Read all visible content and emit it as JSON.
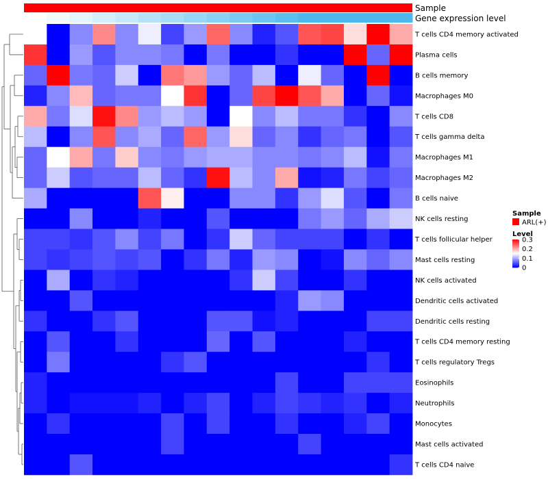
{
  "chart_data": {
    "type": "heatmap",
    "title": "",
    "annotation_tracks": [
      {
        "label": "Sample",
        "color": "#ff0000"
      },
      {
        "label": "Gene expression level",
        "colors": [
          "#ffffff",
          "#f2fafe",
          "#e3f4fc",
          "#d4eefb",
          "#c5e8fa",
          "#b6e2f9",
          "#a7dcf7",
          "#98d6f5",
          "#89d0f4",
          "#7acaf2",
          "#6bc4f1",
          "#5cbeef",
          "#4db8ee",
          "#4db8ee",
          "#4db8ee",
          "#4db8ee",
          "#4db8ee"
        ]
      }
    ],
    "rows": [
      "T cells CD4 memory activated",
      "Plasma cells",
      "B cells memory",
      "Macrophages M0",
      "T cells CD8",
      "T cells gamma delta",
      "Macrophages M1",
      "Macrophages M2",
      "B cells naive",
      "NK cells resting",
      "T cells follicular helper",
      "Mast cells resting",
      "NK cells activated",
      "Dendritic cells activated",
      "Dendritic cells resting",
      "T cells CD4 memory resting",
      "T cells regulatory  Tregs",
      "Eosinophils",
      "Neutrophils",
      "Monocytes",
      "Mast cells activated",
      "T cells CD4 naive"
    ],
    "values": [
      [
        0.15,
        0.0,
        0.08,
        0.22,
        0.08,
        0.14,
        0.04,
        0.09,
        0.24,
        0.08,
        0.02,
        0.05,
        0.25,
        0.26,
        0.17,
        0.31,
        0.2
      ],
      [
        0.27,
        0.0,
        0.09,
        0.05,
        0.08,
        0.08,
        0.07,
        0.0,
        0.07,
        0.0,
        0.0,
        0.03,
        0.0,
        0.0,
        0.31,
        0.06,
        0.31
      ],
      [
        0.06,
        0.31,
        0.07,
        0.06,
        0.12,
        0.0,
        0.23,
        0.21,
        0.09,
        0.06,
        0.11,
        0.0,
        0.14,
        0.06,
        0.0,
        0.31,
        0.0
      ],
      [
        0.02,
        0.08,
        0.19,
        0.06,
        0.07,
        0.07,
        0.15,
        0.27,
        0.0,
        0.06,
        0.26,
        0.31,
        0.25,
        0.2,
        0.0,
        0.06,
        0.01
      ],
      [
        0.2,
        0.07,
        0.13,
        0.29,
        0.22,
        0.09,
        0.11,
        0.09,
        0.0,
        0.15,
        0.08,
        0.11,
        0.07,
        0.07,
        0.03,
        0.0,
        0.08
      ],
      [
        0.11,
        0.0,
        0.08,
        0.25,
        0.08,
        0.1,
        0.06,
        0.24,
        0.09,
        0.17,
        0.06,
        0.08,
        0.03,
        0.06,
        0.07,
        0.0,
        0.05
      ],
      [
        0.06,
        0.15,
        0.2,
        0.07,
        0.18,
        0.08,
        0.07,
        0.09,
        0.1,
        0.1,
        0.08,
        0.08,
        0.07,
        0.08,
        0.11,
        0.01,
        0.07
      ],
      [
        0.06,
        0.12,
        0.05,
        0.06,
        0.06,
        0.11,
        0.06,
        0.03,
        0.29,
        0.11,
        0.08,
        0.2,
        0.01,
        0.02,
        0.07,
        0.04,
        0.06
      ],
      [
        0.1,
        0.0,
        0.0,
        0.0,
        0.0,
        0.25,
        0.16,
        0.0,
        0.0,
        0.08,
        0.08,
        0.03,
        0.09,
        0.13,
        0.05,
        0.0,
        0.07
      ],
      [
        0.0,
        0.0,
        0.08,
        0.0,
        0.0,
        0.02,
        0.0,
        0.0,
        0.05,
        0.0,
        0.0,
        0.0,
        0.07,
        0.09,
        0.06,
        0.1,
        0.12
      ],
      [
        0.04,
        0.04,
        0.03,
        0.05,
        0.08,
        0.04,
        0.07,
        0.0,
        0.03,
        0.12,
        0.06,
        0.04,
        0.04,
        0.04,
        0.0,
        0.03,
        0.0
      ],
      [
        0.04,
        0.03,
        0.04,
        0.05,
        0.04,
        0.05,
        0.0,
        0.03,
        0.07,
        0.02,
        0.09,
        0.08,
        0.0,
        0.01,
        0.08,
        0.06,
        0.08
      ],
      [
        0.0,
        0.1,
        0.0,
        0.03,
        0.02,
        0.0,
        0.0,
        0.0,
        0.0,
        0.03,
        0.12,
        0.04,
        0.0,
        0.0,
        0.03,
        0.0,
        0.0
      ],
      [
        0.0,
        0.0,
        0.05,
        0.0,
        0.0,
        0.0,
        0.0,
        0.0,
        0.0,
        0.0,
        0.0,
        0.02,
        0.09,
        0.08,
        0.0,
        0.0,
        0.0
      ],
      [
        0.03,
        0.0,
        0.0,
        0.03,
        0.05,
        0.0,
        0.0,
        0.0,
        0.05,
        0.05,
        0.01,
        0.02,
        0.0,
        0.0,
        0.0,
        0.04,
        0.04
      ],
      [
        0.0,
        0.05,
        0.0,
        0.0,
        0.03,
        0.0,
        0.0,
        0.0,
        0.06,
        0.0,
        0.05,
        0.0,
        0.0,
        0.0,
        0.02,
        0.0,
        0.0
      ],
      [
        0.0,
        0.07,
        0.0,
        0.0,
        0.0,
        0.0,
        0.03,
        0.05,
        0.0,
        0.0,
        0.0,
        0.0,
        0.0,
        0.0,
        0.0,
        0.03,
        0.0
      ],
      [
        0.02,
        0.0,
        0.0,
        0.0,
        0.0,
        0.0,
        0.0,
        0.0,
        0.0,
        0.0,
        0.0,
        0.04,
        0.0,
        0.0,
        0.04,
        0.04,
        0.04
      ],
      [
        0.02,
        0.0,
        0.01,
        0.01,
        0.01,
        0.02,
        0.0,
        0.02,
        0.04,
        0.0,
        0.02,
        0.04,
        0.03,
        0.02,
        0.03,
        0.0,
        0.02
      ],
      [
        0.0,
        0.03,
        0.0,
        0.0,
        0.0,
        0.0,
        0.04,
        0.0,
        0.04,
        0.0,
        0.0,
        0.03,
        0.0,
        0.0,
        0.02,
        0.04,
        0.0
      ],
      [
        0.0,
        0.0,
        0.0,
        0.0,
        0.0,
        0.0,
        0.04,
        0.0,
        0.0,
        0.0,
        0.0,
        0.0,
        0.04,
        0.0,
        0.0,
        0.0,
        0.0
      ],
      [
        0.0,
        0.0,
        0.05,
        0.0,
        0.0,
        0.0,
        0.0,
        0.0,
        0.0,
        0.0,
        0.0,
        0.0,
        0.0,
        0.0,
        0.0,
        0.0,
        0.03
      ]
    ],
    "color_scale": {
      "min": 0,
      "max": 0.3,
      "low": "#0000ff",
      "mid": "#ffffff",
      "high": "#ff0000",
      "mid_value": 0.15
    },
    "legend": {
      "placement": "right",
      "sample_title": "Sample",
      "sample_entry": "ARL(+)",
      "sample_color": "#ff0000",
      "level_title": "Level",
      "ticks": [
        0.3,
        0.2,
        0.1,
        0
      ],
      "tick_labels": [
        "0.3",
        "0.2",
        "0.1",
        "0"
      ]
    }
  }
}
